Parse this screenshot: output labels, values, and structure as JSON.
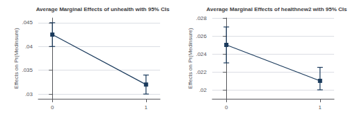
{
  "chart_data": [
    {
      "type": "line",
      "title": "Average Marginal Effects of unhealth with 95% CIs",
      "ylabel": "Effects on Pr(Medinsure)",
      "x": [
        0,
        1
      ],
      "values": [
        0.0425,
        0.032
      ],
      "yerr_low": [
        0.0025,
        0.002
      ],
      "yerr_high": [
        0.0025,
        0.002
      ],
      "xlim": [
        -0.15,
        1.15
      ],
      "xticks": [
        0,
        1
      ],
      "ylim": [
        0.029,
        0.046
      ],
      "yticks": [
        {
          "value": 0.03,
          "label": ".03"
        },
        {
          "value": 0.035,
          "label": ".035"
        },
        {
          "value": 0.04,
          "label": ".04"
        },
        {
          "value": 0.045,
          "label": ".045"
        }
      ],
      "color": "#1a3a5c",
      "marker": "square",
      "grid": true
    },
    {
      "type": "line",
      "title": "Average Marginal Effects of healthnew2 with 95% CIs",
      "ylabel": "Effects on Pr(Medinsure)",
      "x": [
        0,
        1
      ],
      "values": [
        0.025,
        0.021
      ],
      "yerr_low": [
        0.002,
        0.001
      ],
      "yerr_high": [
        0.002,
        0.0015
      ],
      "xlim": [
        -0.15,
        1.15
      ],
      "xticks": [
        0,
        1
      ],
      "ylim": [
        0.019,
        0.028
      ],
      "yticks": [
        {
          "value": 0.02,
          "label": ".02"
        },
        {
          "value": 0.022,
          "label": ".022"
        },
        {
          "value": 0.024,
          "label": ".024"
        },
        {
          "value": 0.026,
          "label": ".026"
        },
        {
          "value": 0.028,
          "label": ".028"
        }
      ],
      "color": "#1a3a5c",
      "marker": "square",
      "grid": true
    }
  ]
}
